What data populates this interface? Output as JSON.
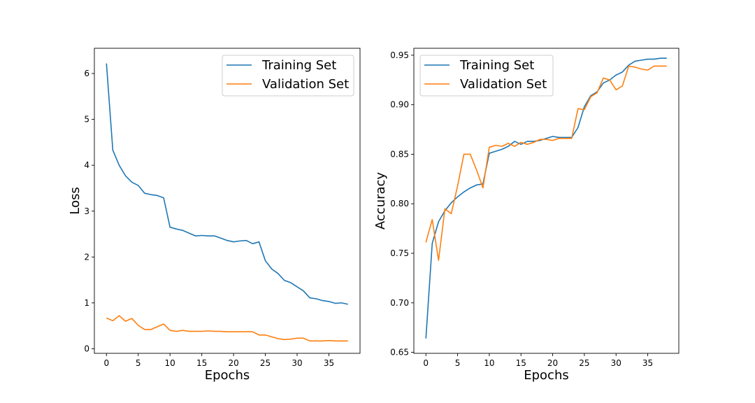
{
  "colors": {
    "training": "#1f77b4",
    "validation": "#ff7f0e"
  },
  "chart_data": [
    {
      "type": "line",
      "xlabel": "Epochs",
      "ylabel": "Loss",
      "xlim": [
        -1.9,
        39.9
      ],
      "ylim": [
        -0.1,
        6.55
      ],
      "xticks": [
        0,
        5,
        10,
        15,
        20,
        25,
        30,
        35
      ],
      "yticks": [
        0,
        1,
        2,
        3,
        4,
        5,
        6
      ],
      "ytick_decimals": 0,
      "legend": "upper right",
      "grid": false,
      "x": [
        0,
        1,
        2,
        3,
        4,
        5,
        6,
        7,
        8,
        9,
        10,
        11,
        12,
        13,
        14,
        15,
        16,
        17,
        18,
        19,
        20,
        21,
        22,
        23,
        24,
        25,
        26,
        27,
        28,
        29,
        30,
        31,
        32,
        33,
        34,
        35,
        36,
        37,
        38
      ],
      "series": [
        {
          "name": "Training Set",
          "values": [
            6.22,
            4.33,
            4.0,
            3.77,
            3.63,
            3.56,
            3.39,
            3.36,
            3.34,
            3.29,
            2.65,
            2.61,
            2.58,
            2.52,
            2.46,
            2.47,
            2.46,
            2.46,
            2.41,
            2.36,
            2.33,
            2.35,
            2.36,
            2.29,
            2.33,
            1.92,
            1.74,
            1.64,
            1.49,
            1.44,
            1.35,
            1.26,
            1.11,
            1.09,
            1.05,
            1.03,
            0.99,
            1.0,
            0.97
          ]
        },
        {
          "name": "Validation Set",
          "values": [
            0.67,
            0.61,
            0.72,
            0.6,
            0.66,
            0.51,
            0.42,
            0.42,
            0.48,
            0.54,
            0.4,
            0.38,
            0.4,
            0.38,
            0.38,
            0.38,
            0.39,
            0.38,
            0.38,
            0.37,
            0.37,
            0.37,
            0.37,
            0.37,
            0.3,
            0.3,
            0.26,
            0.22,
            0.2,
            0.21,
            0.23,
            0.23,
            0.17,
            0.17,
            0.17,
            0.18,
            0.17,
            0.17,
            0.17
          ]
        }
      ]
    },
    {
      "type": "line",
      "xlabel": "Epochs",
      "ylabel": "Accuracy",
      "xlim": [
        -1.9,
        39.9
      ],
      "ylim": [
        0.649,
        0.957
      ],
      "xticks": [
        0,
        5,
        10,
        15,
        20,
        25,
        30,
        35
      ],
      "yticks": [
        0.65,
        0.7,
        0.75,
        0.8,
        0.85,
        0.9,
        0.95
      ],
      "ytick_decimals": 2,
      "legend": "upper left",
      "grid": false,
      "x": [
        0,
        1,
        2,
        3,
        4,
        5,
        6,
        7,
        8,
        9,
        10,
        11,
        12,
        13,
        14,
        15,
        16,
        17,
        18,
        19,
        20,
        21,
        22,
        23,
        24,
        25,
        26,
        27,
        28,
        29,
        30,
        31,
        32,
        33,
        34,
        35,
        36,
        37,
        38
      ],
      "series": [
        {
          "name": "Training Set",
          "values": [
            0.664,
            0.76,
            0.782,
            0.793,
            0.801,
            0.807,
            0.812,
            0.816,
            0.819,
            0.82,
            0.851,
            0.853,
            0.855,
            0.858,
            0.863,
            0.86,
            0.863,
            0.863,
            0.864,
            0.866,
            0.868,
            0.867,
            0.867,
            0.867,
            0.877,
            0.898,
            0.909,
            0.913,
            0.922,
            0.925,
            0.93,
            0.933,
            0.94,
            0.944,
            0.945,
            0.946,
            0.946,
            0.947,
            0.947
          ]
        },
        {
          "name": "Validation Set",
          "values": [
            0.761,
            0.784,
            0.743,
            0.795,
            0.79,
            0.818,
            0.85,
            0.85,
            0.834,
            0.816,
            0.857,
            0.859,
            0.858,
            0.861,
            0.858,
            0.862,
            0.86,
            0.862,
            0.865,
            0.865,
            0.864,
            0.866,
            0.866,
            0.866,
            0.896,
            0.895,
            0.908,
            0.912,
            0.927,
            0.925,
            0.915,
            0.919,
            0.939,
            0.938,
            0.936,
            0.935,
            0.939,
            0.939,
            0.939
          ]
        }
      ]
    }
  ]
}
